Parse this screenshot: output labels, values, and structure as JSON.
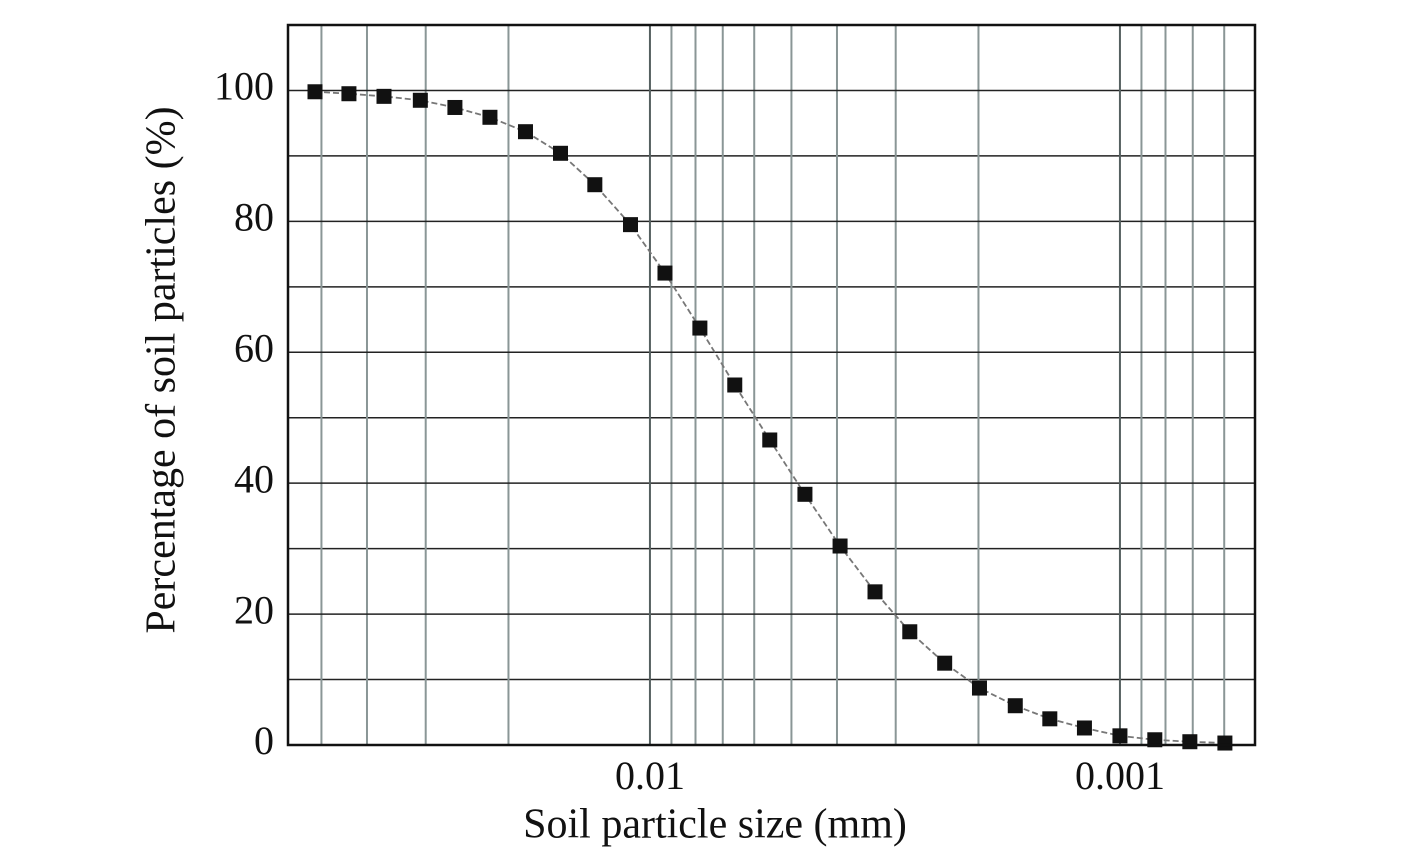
{
  "chart_data": {
    "type": "line",
    "x_label": "Soil particle size (mm)",
    "y_label": "Percentage of soil particles (%)",
    "x": [
      0.0516,
      0.0437,
      0.0368,
      0.0308,
      0.026,
      0.0219,
      0.0184,
      0.0155,
      0.0131,
      0.011,
      0.00929,
      0.00783,
      0.0066,
      0.00556,
      0.00468,
      0.00394,
      0.00332,
      0.0028,
      0.00236,
      0.00199,
      0.00167,
      0.00141,
      0.00119,
      0.001,
      0.000843,
      0.00071,
      0.000598
    ],
    "values": [
      99.8,
      99.5,
      99.1,
      98.5,
      97.4,
      95.9,
      93.7,
      90.4,
      85.6,
      79.5,
      72.1,
      63.7,
      55.0,
      46.6,
      38.3,
      30.4,
      23.4,
      17.3,
      12.5,
      8.7,
      6.0,
      4.0,
      2.6,
      1.4,
      0.8,
      0.5,
      0.3
    ],
    "color": "#111111",
    "line_color": "#777777",
    "xlog": true,
    "xlim": [
      0.0589,
      0.000516
    ],
    "xticks": [
      0.01,
      0.001
    ],
    "x_minor_grid": [
      0.05,
      0.04,
      0.03,
      0.02,
      0.009,
      0.008,
      0.007,
      0.006,
      0.005,
      0.004,
      0.003,
      0.002,
      0.0009,
      0.0008,
      0.0007,
      0.0006
    ],
    "ylim": [
      0,
      110
    ],
    "yticks": [
      0,
      20,
      40,
      60,
      80,
      100
    ],
    "y_minor_grid": [
      10,
      30,
      50,
      70,
      90
    ],
    "grid": true
  }
}
